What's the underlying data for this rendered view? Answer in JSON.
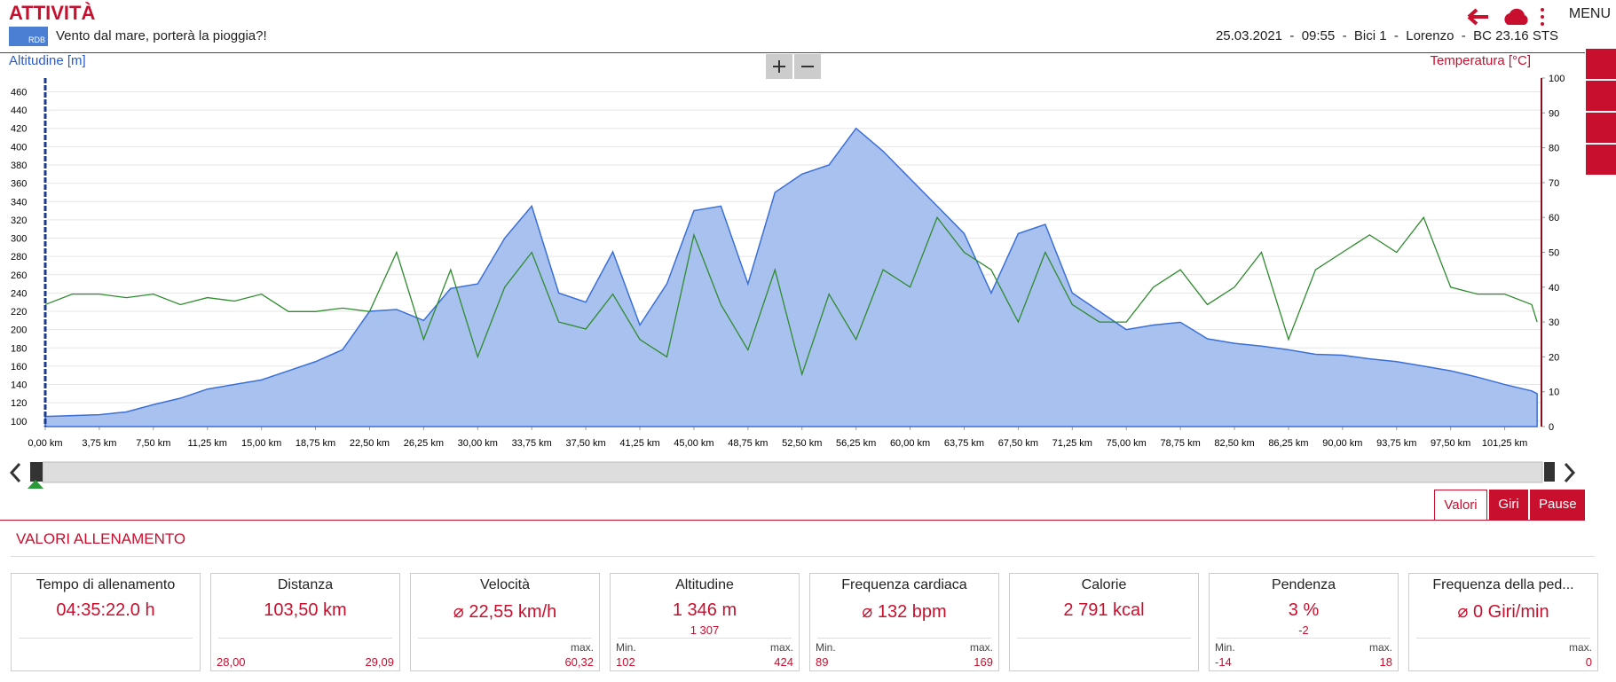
{
  "header": {
    "title": "ATTIVITÀ",
    "badge": "RDB",
    "subtitle": "Vento dal mare, porterà la pioggia?!",
    "info": "25.03.2021  -  09:55  -  Bici 1  -  Lorenzo  -  BC 23.16 STS",
    "menu": "MENU"
  },
  "chart_data": {
    "type": "area",
    "y_label": "Altitudine [m]",
    "y2_label": "Temperatura [°C]",
    "grid": true,
    "x": [
      0,
      1.875,
      3.75,
      5.625,
      7.5,
      9.375,
      11.25,
      13.125,
      15,
      16.875,
      18.75,
      20.625,
      22.5,
      24.375,
      26.25,
      28.125,
      30,
      31.875,
      33.75,
      35.625,
      37.5,
      39.375,
      41.25,
      43.125,
      45,
      46.875,
      48.75,
      50.625,
      52.5,
      54.375,
      56.25,
      58.125,
      60,
      61.875,
      63.75,
      65.625,
      67.5,
      69.375,
      71.25,
      73.125,
      75,
      76.875,
      78.75,
      80.625,
      82.5,
      84.375,
      86.25,
      88.125,
      90,
      91.875,
      93.75,
      95.625,
      97.5,
      99.375,
      101.25,
      103.125,
      103.5
    ],
    "series": [
      {
        "name": "Altitudine",
        "type": "area",
        "color": "#3a6fd8",
        "values": [
          105,
          106,
          107,
          110,
          118,
          125,
          135,
          140,
          145,
          155,
          165,
          178,
          220,
          222,
          210,
          245,
          250,
          300,
          335,
          240,
          230,
          285,
          205,
          250,
          330,
          335,
          250,
          350,
          370,
          380,
          420,
          395,
          365,
          335,
          305,
          240,
          305,
          315,
          240,
          220,
          200,
          205,
          208,
          190,
          185,
          182,
          178,
          173,
          172,
          168,
          165,
          160,
          155,
          148,
          140,
          133,
          130
        ]
      },
      {
        "name": "Temperatura",
        "type": "line",
        "axis": "y2",
        "color": "#2e8b2e",
        "values": [
          35,
          38,
          38,
          37,
          38,
          35,
          37,
          36,
          38,
          33,
          33,
          34,
          33,
          50,
          25,
          45,
          20,
          40,
          50,
          30,
          28,
          38,
          25,
          20,
          55,
          35,
          22,
          45,
          15,
          38,
          25,
          45,
          40,
          60,
          50,
          45,
          30,
          50,
          35,
          30,
          30,
          40,
          45,
          35,
          40,
          50,
          25,
          45,
          50,
          55,
          50,
          60,
          40,
          38,
          38,
          35,
          30
        ]
      }
    ],
    "xlim": [
      0,
      103.8
    ],
    "ylim": [
      94,
      475
    ],
    "y2lim": [
      0,
      100
    ],
    "yticks": [
      100,
      120,
      140,
      160,
      180,
      200,
      220,
      240,
      260,
      280,
      300,
      320,
      340,
      360,
      380,
      400,
      420,
      440,
      460
    ],
    "y2ticks": [
      0,
      10,
      20,
      30,
      40,
      50,
      60,
      70,
      80,
      90,
      100
    ],
    "xticks": [
      {
        "value": 0,
        "label": "0,00 km"
      },
      {
        "value": 3.75,
        "label": "3,75 km"
      },
      {
        "value": 7.5,
        "label": "7,50 km"
      },
      {
        "value": 11.25,
        "label": "11,25 km"
      },
      {
        "value": 15,
        "label": "15,00 km"
      },
      {
        "value": 18.75,
        "label": "18,75 km"
      },
      {
        "value": 22.5,
        "label": "22,50 km"
      },
      {
        "value": 26.25,
        "label": "26,25 km"
      },
      {
        "value": 30,
        "label": "30,00 km"
      },
      {
        "value": 33.75,
        "label": "33,75 km"
      },
      {
        "value": 37.5,
        "label": "37,50 km"
      },
      {
        "value": 41.25,
        "label": "41,25 km"
      },
      {
        "value": 45,
        "label": "45,00 km"
      },
      {
        "value": 48.75,
        "label": "48,75 km"
      },
      {
        "value": 52.5,
        "label": "52,50 km"
      },
      {
        "value": 56.25,
        "label": "56,25 km"
      },
      {
        "value": 60,
        "label": "60,00 km"
      },
      {
        "value": 63.75,
        "label": "63,75 km"
      },
      {
        "value": 67.5,
        "label": "67,50 km"
      },
      {
        "value": 71.25,
        "label": "71,25 km"
      },
      {
        "value": 75,
        "label": "75,00 km"
      },
      {
        "value": 78.75,
        "label": "78,75 km"
      },
      {
        "value": 82.5,
        "label": "82,50 km"
      },
      {
        "value": 86.25,
        "label": "86,25 km"
      },
      {
        "value": 90,
        "label": "90,00 km"
      },
      {
        "value": 93.75,
        "label": "93,75 km"
      },
      {
        "value": 97.5,
        "label": "97,50 km"
      },
      {
        "value": 101.25,
        "label": "101,25 km"
      }
    ]
  },
  "tabs": [
    "Valori",
    "Giri",
    "Pause"
  ],
  "section_title": "VALORI ALLENAMENTO",
  "panels": [
    {
      "title": "Tempo di allenamento",
      "value": "04:35:22.0 h"
    },
    {
      "title": "Distanza",
      "value": "103,50 km",
      "min": "28,00",
      "max": "29,09"
    },
    {
      "title": "Velocità",
      "value": "⌀ 22,55 km/h",
      "max_label": "max.",
      "max": "60,32"
    },
    {
      "title": "Altitudine",
      "value": "1 346 m",
      "sub": "1 307",
      "min_label": "Min.",
      "min": "102",
      "max_label": "max.",
      "max": "424"
    },
    {
      "title": "Frequenza cardiaca",
      "value": "⌀ 132 bpm",
      "min_label": "Min.",
      "min": "89",
      "max_label": "max.",
      "max": "169"
    },
    {
      "title": "Calorie",
      "value": "2 791 kcal"
    },
    {
      "title": "Pendenza",
      "value": "3 %",
      "sub": "-2",
      "min_label": "Min.",
      "min": "-14",
      "max_label": "max.",
      "max": "18"
    },
    {
      "title": "Frequenza della ped...",
      "value": "⌀ 0 Giri/min",
      "max_label": "max.",
      "max": "0"
    }
  ]
}
